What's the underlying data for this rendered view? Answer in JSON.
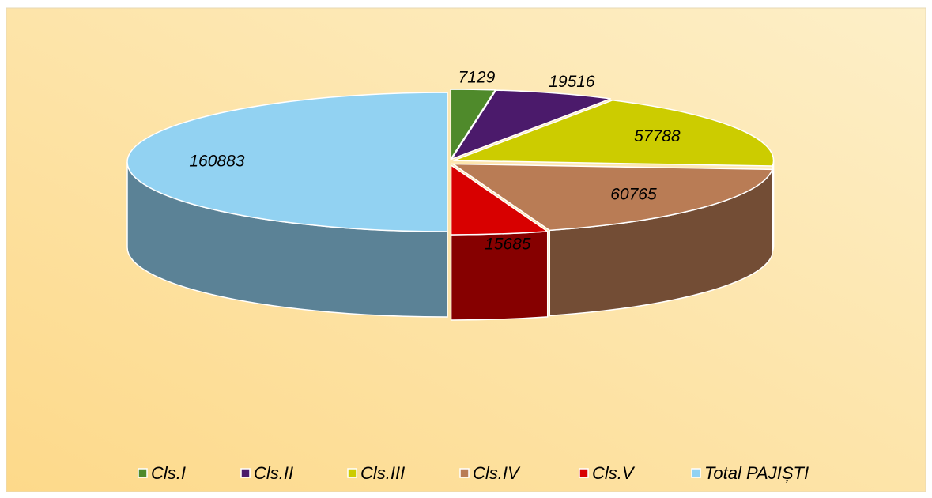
{
  "chart_data": {
    "type": "pie3d",
    "categories": [
      "Cls.I",
      "Cls.II",
      "Cls.III",
      "Cls.IV",
      "Cls.V",
      "Total PAJIȘTI"
    ],
    "values": [
      7129,
      19516,
      57788,
      60765,
      15685,
      160883
    ],
    "colors": [
      "#4f8a2b",
      "#4b1a6b",
      "#cccc00",
      "#b97c55",
      "#d80000",
      "#92d2f2"
    ],
    "legend": "bottom"
  }
}
